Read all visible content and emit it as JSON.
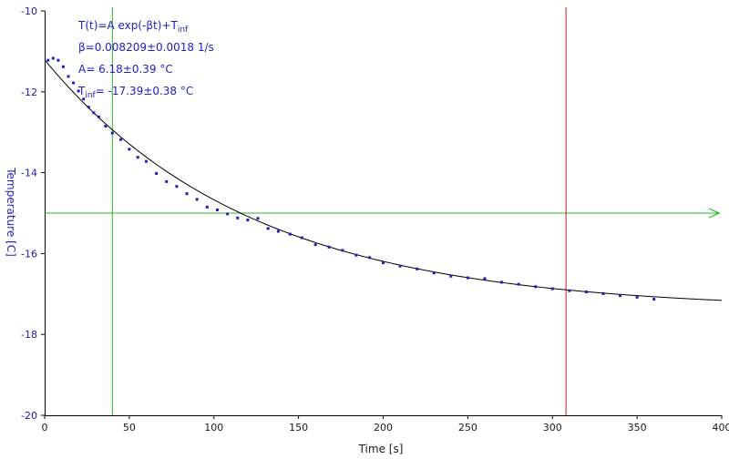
{
  "colors": {
    "data_points": "#1f1fbf",
    "fit_line": "#000000",
    "green_cursor": "#2fb42f",
    "red_cursor": "#b02020",
    "axis": "#000000",
    "ylabel": "#1f1fbf"
  },
  "annotation": {
    "formula_main": "T(t)=A exp(-βt)+T",
    "formula_sub": "inf",
    "beta": "β=0.008209±0.0018 1/s",
    "amplitude": "A= 6.18±0.39 °C",
    "tinf_label": "T",
    "tinf_sub": "inf",
    "tinf_value": "= -17.39±0.38 °C"
  },
  "chart_data": {
    "type": "scatter",
    "xlabel": "Time [s]",
    "ylabel": "Temperature [C]",
    "xlim": [
      0,
      400
    ],
    "ylim": [
      -20,
      -10
    ],
    "xticks": [
      0,
      50,
      100,
      150,
      200,
      250,
      300,
      350,
      400
    ],
    "yticks": [
      -10,
      -12,
      -14,
      -16,
      -18,
      -20
    ],
    "grid": false,
    "fit": {
      "model": "exponential decay",
      "A": 6.18,
      "beta": 0.008209,
      "T_inf": -17.39,
      "x_range": [
        0,
        400
      ]
    },
    "series": [
      {
        "kind": "points",
        "x": [
          2,
          5,
          8,
          11,
          14,
          17,
          20,
          23,
          26,
          29,
          32,
          36,
          40,
          45,
          50,
          55,
          60,
          66,
          72,
          78,
          84,
          90,
          96,
          102,
          108,
          114,
          120,
          126,
          132,
          138,
          145,
          152,
          160,
          168,
          176,
          184,
          192,
          200,
          210,
          220,
          230,
          240,
          250,
          260,
          270,
          280,
          290,
          300,
          310,
          320,
          330,
          340,
          350,
          360
        ],
        "y": [
          -11.22,
          -11.17,
          -11.22,
          -11.38,
          -11.62,
          -11.78,
          -11.98,
          -12.18,
          -12.38,
          -12.52,
          -12.62,
          -12.85,
          -13.02,
          -13.18,
          -13.42,
          -13.62,
          -13.72,
          -14.02,
          -14.22,
          -14.34,
          -14.52,
          -14.66,
          -14.85,
          -14.92,
          -15.02,
          -15.12,
          -15.17,
          -15.13,
          -15.38,
          -15.45,
          -15.52,
          -15.61,
          -15.78,
          -15.84,
          -15.92,
          -16.04,
          -16.1,
          -16.23,
          -16.31,
          -16.38,
          -16.48,
          -16.56,
          -16.6,
          -16.62,
          -16.71,
          -16.76,
          -16.82,
          -16.87,
          -16.92,
          -16.95,
          -16.99,
          -17.04,
          -17.08,
          -17.13
        ]
      }
    ],
    "cursors": [
      {
        "axis": "x",
        "value": 40,
        "color": "green"
      },
      {
        "axis": "y",
        "value": -15,
        "color": "green",
        "arrow": true
      },
      {
        "axis": "x",
        "value": 308,
        "color": "red"
      }
    ]
  }
}
